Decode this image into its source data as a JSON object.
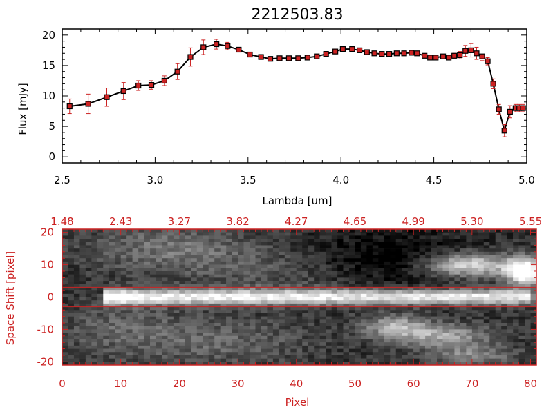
{
  "chart_data": [
    {
      "type": "line",
      "title": "2212503.83",
      "xlabel": "Lambda [um]",
      "ylabel": "Flux [mJy]",
      "xlim": [
        2.5,
        5.0
      ],
      "ylim": [
        -1,
        21
      ],
      "xticks": [
        2.5,
        3.0,
        3.5,
        4.0,
        4.5,
        5.0
      ],
      "xtick_labels": [
        "2.5",
        "3.0",
        "3.5",
        "4.0",
        "4.5",
        "5.0"
      ],
      "yticks": [
        0,
        5,
        10,
        15,
        20
      ],
      "ytick_labels": [
        "0",
        "5",
        "10",
        "15",
        "20"
      ],
      "series": [
        {
          "name": "flux",
          "line_color": "#000000",
          "marker_color": "#cc2222",
          "errorbar_color": "#cc2222",
          "x": [
            2.54,
            2.64,
            2.74,
            2.83,
            2.91,
            2.98,
            3.05,
            3.12,
            3.19,
            3.26,
            3.33,
            3.39,
            3.45,
            3.51,
            3.57,
            3.62,
            3.67,
            3.72,
            3.77,
            3.82,
            3.87,
            3.92,
            3.97,
            4.01,
            4.06,
            4.1,
            4.14,
            4.18,
            4.22,
            4.26,
            4.3,
            4.34,
            4.38,
            4.41,
            4.45,
            4.48,
            4.51,
            4.55,
            4.58,
            4.61,
            4.64,
            4.67,
            4.7,
            4.73,
            4.76,
            4.79,
            4.82,
            4.85,
            4.88,
            4.91,
            4.94,
            4.96,
            4.98
          ],
          "y": [
            8.3,
            8.7,
            9.8,
            10.8,
            11.7,
            11.8,
            12.5,
            14.0,
            16.4,
            18.0,
            18.5,
            18.2,
            17.6,
            16.8,
            16.4,
            16.1,
            16.2,
            16.2,
            16.2,
            16.3,
            16.5,
            16.9,
            17.3,
            17.7,
            17.7,
            17.5,
            17.2,
            17.0,
            16.9,
            16.9,
            17.0,
            17.0,
            17.1,
            17.0,
            16.6,
            16.3,
            16.3,
            16.5,
            16.3,
            16.6,
            16.7,
            17.4,
            17.5,
            17.0,
            16.5,
            15.7,
            12.0,
            7.8,
            4.3,
            7.4,
            8.0,
            8.0,
            8.0
          ],
          "yerr": [
            1.2,
            1.6,
            1.5,
            1.4,
            0.8,
            0.7,
            0.8,
            1.3,
            1.5,
            1.2,
            0.8,
            0.6,
            0.4,
            0.3,
            0.3,
            0.3,
            0.3,
            0.3,
            0.3,
            0.3,
            0.3,
            0.4,
            0.4,
            0.3,
            0.3,
            0.3,
            0.3,
            0.3,
            0.3,
            0.3,
            0.3,
            0.3,
            0.3,
            0.3,
            0.3,
            0.3,
            0.3,
            0.3,
            0.4,
            0.4,
            0.6,
            0.9,
            1.1,
            1.0,
            0.7,
            0.6,
            0.8,
            0.8,
            1.0,
            1.0,
            0.6,
            0.6,
            0.6
          ]
        }
      ]
    },
    {
      "type": "heatmap",
      "xlabel": "Pixel",
      "ylabel": "Space Shift [pixel]",
      "xlim": [
        0,
        81
      ],
      "ylim": [
        -21,
        21
      ],
      "xticks": [
        0,
        10,
        20,
        30,
        40,
        50,
        60,
        70,
        80
      ],
      "xtick_labels": [
        "0",
        "10",
        "20",
        "30",
        "40",
        "50",
        "60",
        "70",
        "80"
      ],
      "yticks": [
        -20,
        -10,
        0,
        10,
        20
      ],
      "ytick_labels": [
        "-20",
        "-10",
        "0",
        "10",
        "20"
      ],
      "top_axis_ticks": [
        0,
        10,
        20,
        30,
        40,
        50,
        60,
        70,
        80
      ],
      "top_axis_labels": [
        "1.48",
        "2.43",
        "3.27",
        "3.82",
        "4.27",
        "4.65",
        "4.99",
        "5.30",
        "5.55"
      ],
      "extraction_band": [
        -3,
        3
      ],
      "axis_color": "#cc2222",
      "colormap": "grayscale",
      "features": [
        {
          "name": "spectral trace",
          "x_range": [
            8,
            80
          ],
          "y": 0,
          "note": "bright horizontal trace, brightest near pixel 10"
        },
        {
          "name": "upper-right source",
          "x_center": 69,
          "y": 10,
          "note": "bright diffuse blob"
        },
        {
          "name": "far-right source",
          "x_center": 79,
          "y": 8,
          "note": "very bright blob at edge"
        },
        {
          "name": "lower-right source",
          "x_center": 65,
          "y": -12,
          "note": "diffuse streak"
        },
        {
          "name": "lower source",
          "x_center": 57,
          "y": -9,
          "note": "diffuse patch"
        }
      ]
    }
  ]
}
